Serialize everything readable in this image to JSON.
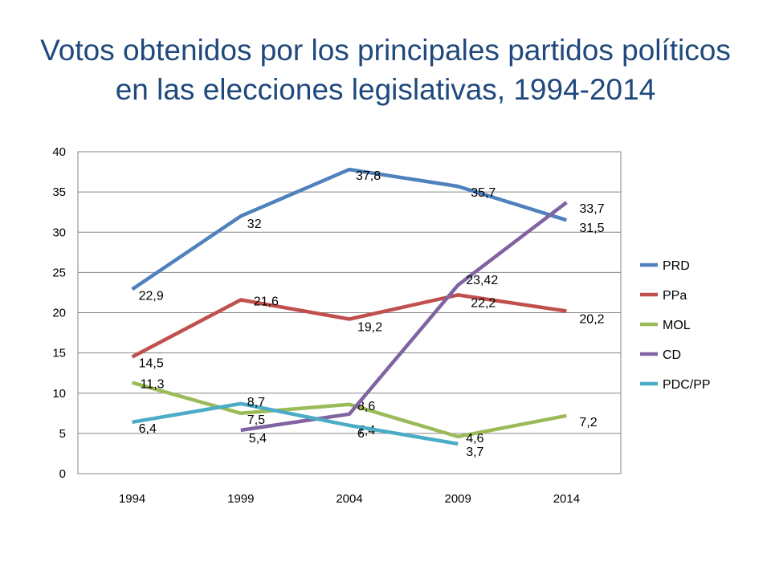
{
  "chart_data": {
    "type": "line",
    "title_lines": [
      "Votos obtenidos por los principales partidos políticos",
      "en las elecciones legislativas, 1994-2014"
    ],
    "categories": [
      "1994",
      "1999",
      "2004",
      "2009",
      "2014"
    ],
    "ylim": [
      0,
      40
    ],
    "yticks": [
      0,
      5,
      10,
      15,
      20,
      25,
      30,
      35,
      40
    ],
    "grid": true,
    "legend_position": "right",
    "series": [
      {
        "name": "PRD",
        "color": "#4F81BD",
        "values": [
          22.9,
          32,
          37.8,
          35.7,
          31.5
        ],
        "labels": [
          "22,9",
          "32",
          "37,8",
          "35,7",
          "31,5"
        ]
      },
      {
        "name": "PPa",
        "color": "#C0504D",
        "values": [
          14.5,
          21.6,
          19.2,
          22.2,
          20.2
        ],
        "labels": [
          "14,5",
          "21,6",
          "19,2",
          "22,2",
          "20,2"
        ]
      },
      {
        "name": "MOL",
        "color": "#9BBB59",
        "values": [
          11.3,
          7.5,
          8.6,
          4.6,
          7.2
        ],
        "labels": [
          "11,3",
          "7,5",
          "8,6",
          "4,6",
          "7,2"
        ]
      },
      {
        "name": "CD",
        "color": "#8064A2",
        "values": [
          null,
          5.4,
          7.4,
          23.42,
          33.7
        ],
        "labels": [
          null,
          "5,4",
          "7,4",
          "23,42",
          "33,7"
        ]
      },
      {
        "name": "PDC/PP",
        "color": "#4BACC6",
        "values": [
          6.4,
          8.7,
          6,
          3.7,
          null
        ],
        "labels": [
          "6,4",
          "8,7",
          "6",
          "3,7",
          null
        ]
      }
    ]
  }
}
